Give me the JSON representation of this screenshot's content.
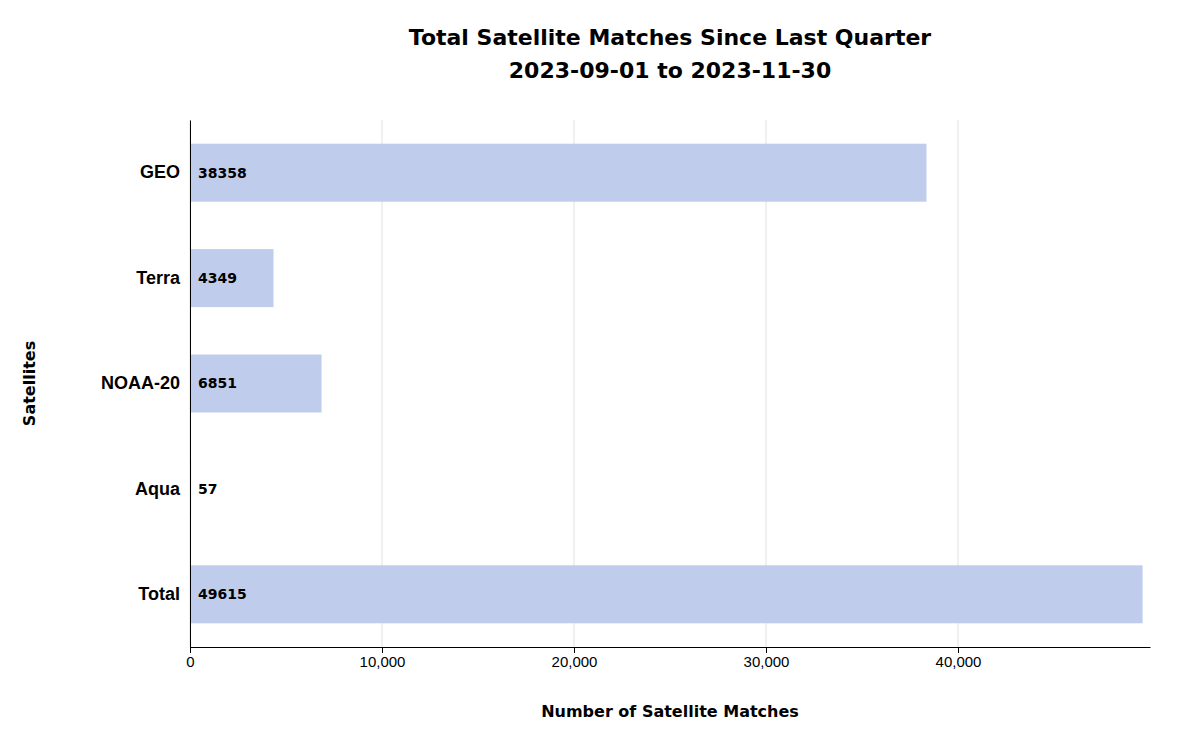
{
  "chart_data": {
    "type": "bar",
    "orientation": "horizontal",
    "title": "Total Satellite Matches Since Last Quarter",
    "subtitle": "2023-09-01 to 2023-11-30",
    "categories": [
      "GEO",
      "Terra",
      "NOAA-20",
      "Aqua",
      "Total"
    ],
    "values": [
      38358,
      4349,
      6851,
      57,
      49615
    ],
    "color": "#bfccec",
    "x_label": "Number of Satellite Matches",
    "y_label": "Satellites",
    "xlim": [
      0,
      50000
    ],
    "xticks": [
      0,
      {
        "value": 10000,
        "label": "10,000"
      },
      {
        "value": 20000,
        "label": "20,000"
      },
      {
        "value": 30000,
        "label": "30,000"
      },
      {
        "value": 40000,
        "label": "40,000"
      }
    ],
    "grid": true,
    "data_labels": true
  }
}
